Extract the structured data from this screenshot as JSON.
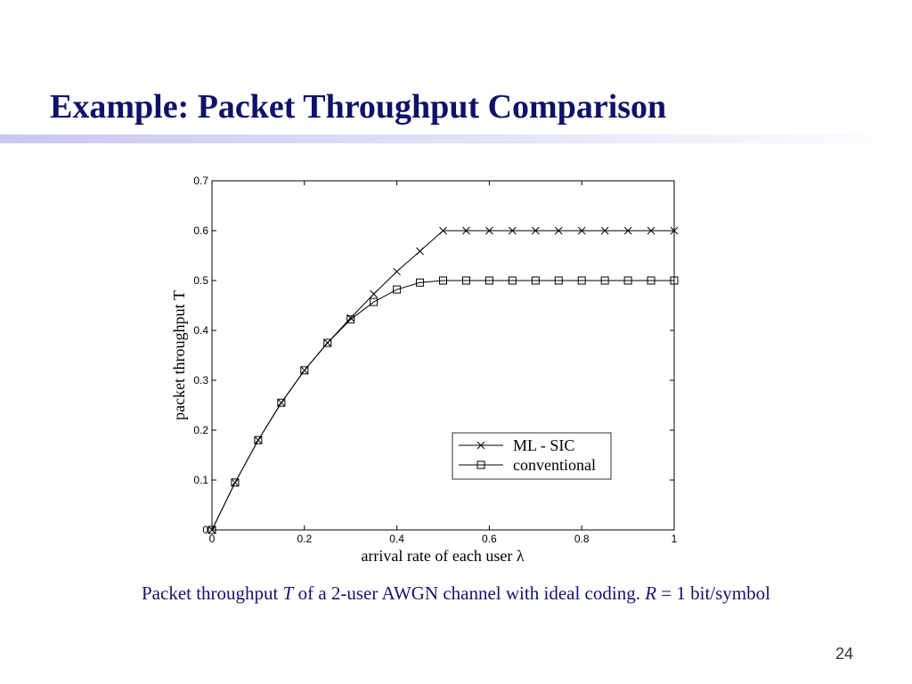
{
  "slide": {
    "title": "Example: Packet Throughput Comparison",
    "caption_parts": [
      "Packet throughput ",
      "T",
      " of a 2-user AWGN channel with ideal coding. ",
      "R",
      " = 1 bit/symbol"
    ],
    "page_number": "24",
    "colors": {
      "title": "#0f1268",
      "caption": "#14146e",
      "rule": "#c8c8f0"
    }
  },
  "chart_data": {
    "type": "line",
    "xlabel": "arrival rate of each user λ",
    "ylabel": "packet throughput T",
    "xlim": [
      0,
      1
    ],
    "ylim": [
      0,
      0.7
    ],
    "xticks": [
      "0",
      "0.2",
      "0.4",
      "0.6",
      "0.8",
      "1"
    ],
    "yticks": [
      "0",
      "0.1",
      "0.2",
      "0.3",
      "0.4",
      "0.5",
      "0.6",
      "0.7"
    ],
    "grid": false,
    "legend_placement": "lower-right",
    "x": [
      0,
      0.05,
      0.1,
      0.15,
      0.2,
      0.25,
      0.3,
      0.35,
      0.4,
      0.45,
      0.5,
      0.55,
      0.6,
      0.65,
      0.7,
      0.75,
      0.8,
      0.85,
      0.9,
      0.95,
      1.0
    ],
    "series": [
      {
        "name": "ML - SIC",
        "marker": "x",
        "values": [
          0,
          0.095,
          0.18,
          0.255,
          0.32,
          0.375,
          0.425,
          0.473,
          0.518,
          0.559,
          0.6,
          0.6,
          0.6,
          0.6,
          0.6,
          0.6,
          0.6,
          0.6,
          0.6,
          0.6,
          0.6
        ]
      },
      {
        "name": "conventional",
        "marker": "square",
        "values": [
          0,
          0.095,
          0.18,
          0.255,
          0.32,
          0.375,
          0.422,
          0.457,
          0.482,
          0.496,
          0.5,
          0.5,
          0.5,
          0.5,
          0.5,
          0.5,
          0.5,
          0.5,
          0.5,
          0.5,
          0.5
        ]
      }
    ]
  }
}
